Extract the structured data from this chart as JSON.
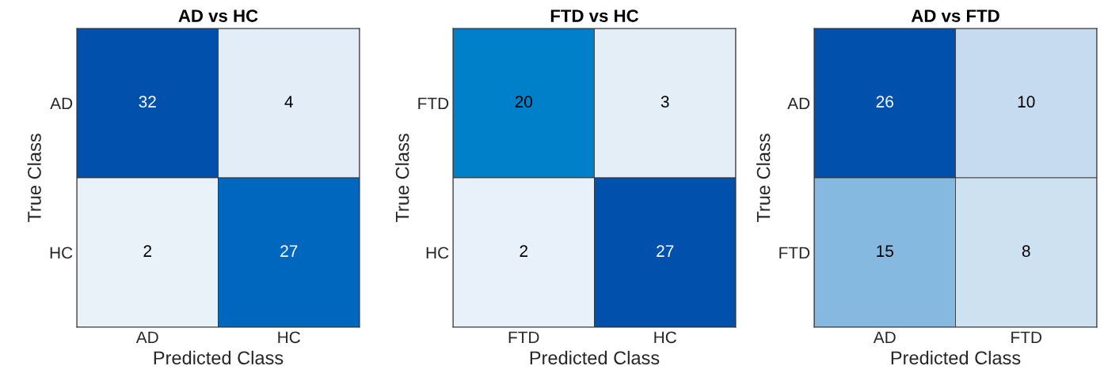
{
  "chart_data": [
    {
      "type": "heatmap",
      "title": "AD vs HC",
      "xlabel": "Predicted Class",
      "ylabel": "True Class",
      "categories": [
        "AD",
        "HC"
      ],
      "y_categories": [
        "AD",
        "HC"
      ],
      "cells": [
        [
          32,
          4
        ],
        [
          2,
          27
        ]
      ],
      "data_labels": true
    },
    {
      "type": "heatmap",
      "title": "FTD vs HC",
      "xlabel": "Predicted Class",
      "ylabel": "True Class",
      "categories": [
        "FTD",
        "HC"
      ],
      "y_categories": [
        "FTD",
        "HC"
      ],
      "cells": [
        [
          20,
          3
        ],
        [
          2,
          27
        ]
      ],
      "data_labels": true
    },
    {
      "type": "heatmap",
      "title": "AD vs FTD",
      "xlabel": "Predicted Class",
      "ylabel": "True Class",
      "categories": [
        "AD",
        "FTD"
      ],
      "y_categories": [
        "AD",
        "FTD"
      ],
      "cells": [
        [
          26,
          10
        ],
        [
          15,
          8
        ]
      ],
      "data_labels": true
    }
  ]
}
